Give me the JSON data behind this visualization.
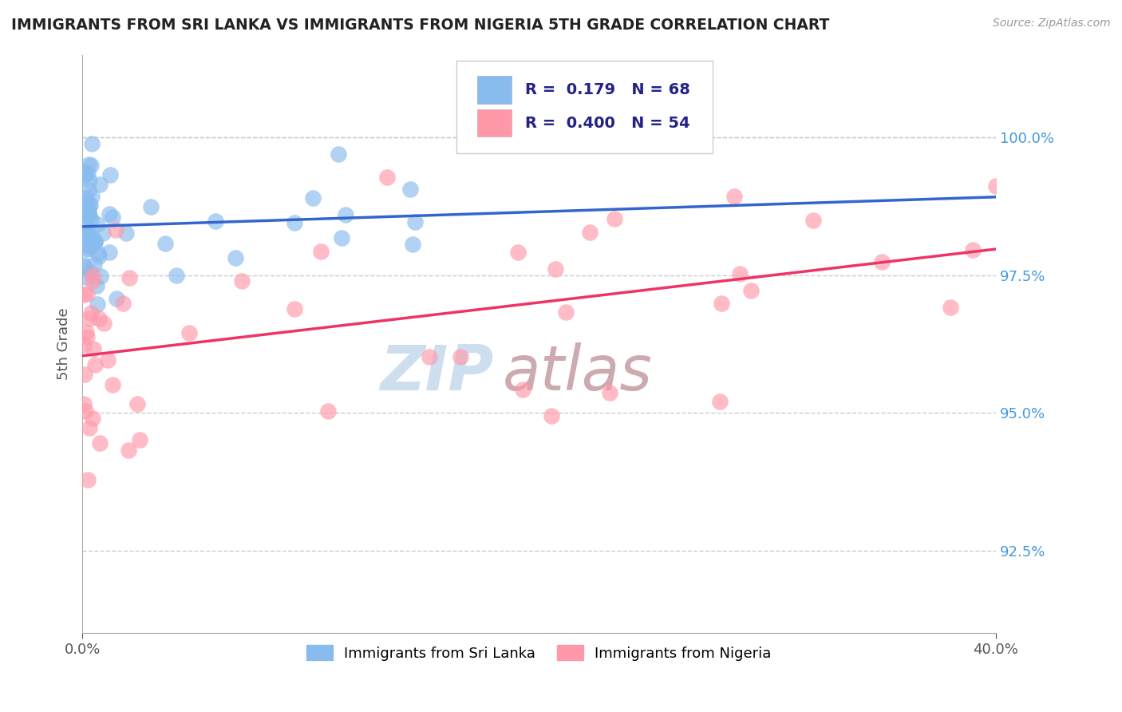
{
  "title": "IMMIGRANTS FROM SRI LANKA VS IMMIGRANTS FROM NIGERIA 5TH GRADE CORRELATION CHART",
  "source": "Source: ZipAtlas.com",
  "ylabel": "5th Grade",
  "xlim": [
    0.0,
    40.0
  ],
  "ylim": [
    91.0,
    101.5
  ],
  "yticks": [
    92.5,
    95.0,
    97.5,
    100.0
  ],
  "ytick_labels": [
    "92.5%",
    "95.0%",
    "97.5%",
    "100.0%"
  ],
  "xticks": [
    0.0,
    40.0
  ],
  "xtick_labels": [
    "0.0%",
    "40.0%"
  ],
  "sri_lanka_color": "#88BBEE",
  "nigeria_color": "#FF99AA",
  "sri_lanka_line_color": "#3366CC",
  "nigeria_line_color": "#EE3366",
  "sri_lanka_R": 0.179,
  "sri_lanka_N": 68,
  "nigeria_R": 0.4,
  "nigeria_N": 54,
  "legend_label_1": "Immigrants from Sri Lanka",
  "legend_label_2": "Immigrants from Nigeria",
  "watermark_zip": "ZIP",
  "watermark_atlas": "atlas",
  "background_color": "#ffffff",
  "grid_color": "#cccccc",
  "ytick_color": "#4499DD",
  "title_color": "#222222",
  "source_color": "#999999"
}
